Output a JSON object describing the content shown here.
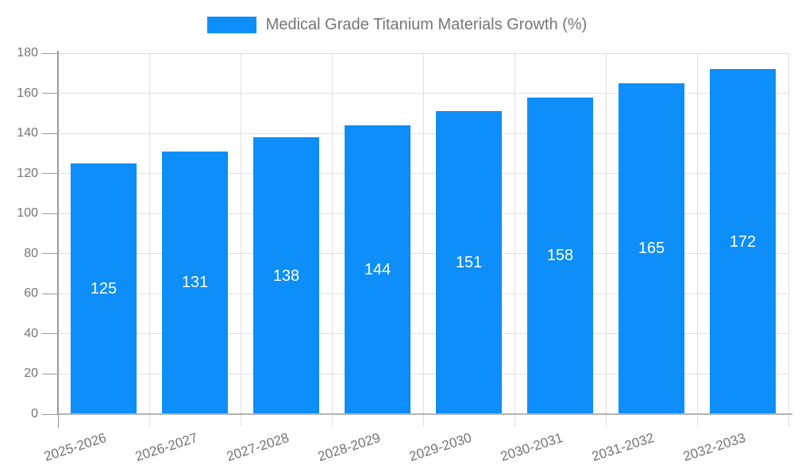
{
  "chart_data": {
    "type": "bar",
    "title": "Medical Grade Titanium Materials Growth (%)",
    "categories": [
      "2025-2026",
      "2026-2027",
      "2027-2028",
      "2028-2029",
      "2029-2030",
      "2030-2031",
      "2031-2032",
      "2032-2033"
    ],
    "values": [
      125,
      131,
      138,
      144,
      151,
      158,
      165,
      172
    ],
    "xlabel": "",
    "ylabel": "",
    "ylim": [
      0,
      180
    ],
    "y_ticks": [
      0,
      20,
      40,
      60,
      80,
      100,
      120,
      140,
      160,
      180
    ],
    "grid": "both",
    "legend_position": "top",
    "value_labels_position": "center-of-bar",
    "bar_color": "#0d8ef8",
    "value_label_color": "#ffffff",
    "axis_text_color": "#757575",
    "grid_color": "#e0e0e0",
    "axis_line_color": "#9a9a9a",
    "bottom_axis_line_color": "#b3b3b3",
    "background_color": "#ffffff"
  }
}
